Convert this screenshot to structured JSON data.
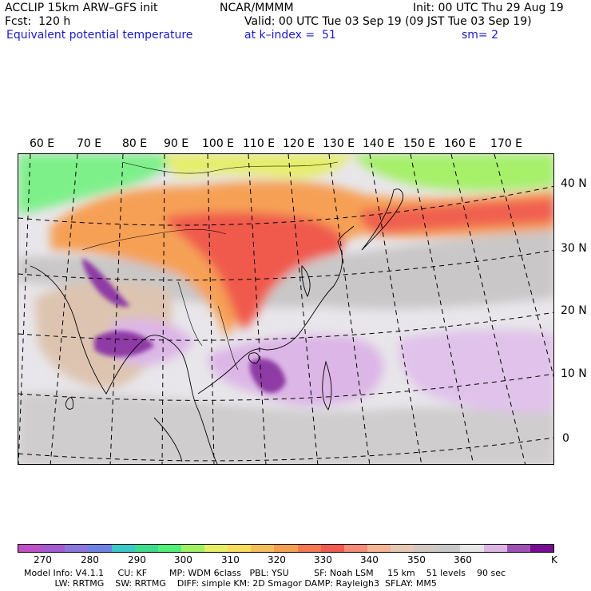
{
  "header": {
    "model": "ACCLIP 15km ARW–GFS init",
    "center": "NCAR/MMMM",
    "init": "Init: 00 UTC Thu 29 Aug 19",
    "fcst": "Fcst:  120 h",
    "valid": "Valid: 00 UTC Tue 03 Sep 19 (09 JST Tue 03 Sep 19)",
    "field": "Equivalent potential temperature",
    "level": "at k–index =  51",
    "smooth": "sm= 2"
  },
  "map": {
    "lon_labels": [
      "60 E",
      "70 E",
      "80 E",
      "90 E",
      "100 E",
      "110 E",
      "120 E",
      "130 E",
      "140 E",
      "150 E",
      "160 E",
      "170 E"
    ],
    "lat_labels": [
      "40 N",
      "30 N",
      "20 N",
      "10 N",
      "0"
    ]
  },
  "colorbar": {
    "colors": [
      "#c050c8",
      "#a55ad2",
      "#8c78dc",
      "#6e82e6",
      "#3cc8c8",
      "#3cdc8c",
      "#50f078",
      "#a0f064",
      "#e6f064",
      "#f5dc5a",
      "#f5be5a",
      "#f5a050",
      "#f57850",
      "#f05a50",
      "#f58c78",
      "#f5b496",
      "#e6c8b4",
      "#d2c8c0",
      "#c8c8c8",
      "#e6e6e6",
      "#dcb4e6",
      "#a050b4",
      "#780a96"
    ],
    "labels": [
      "270",
      "280",
      "290",
      "300",
      "310",
      "320",
      "330",
      "340",
      "350",
      "360",
      "K"
    ]
  },
  "info": {
    "line1": "Model Info: V4.1.1     CU: KF        MP: WDM 6class   PBL: YSU         SF: Noah LSM     15 km    51 levels    90 sec",
    "line2": "           LW: RRTMG    SW: RRTMG    DIFF: simple KM: 2D Smagor DAMP: Rayleigh3  SFLAY: MM5"
  }
}
